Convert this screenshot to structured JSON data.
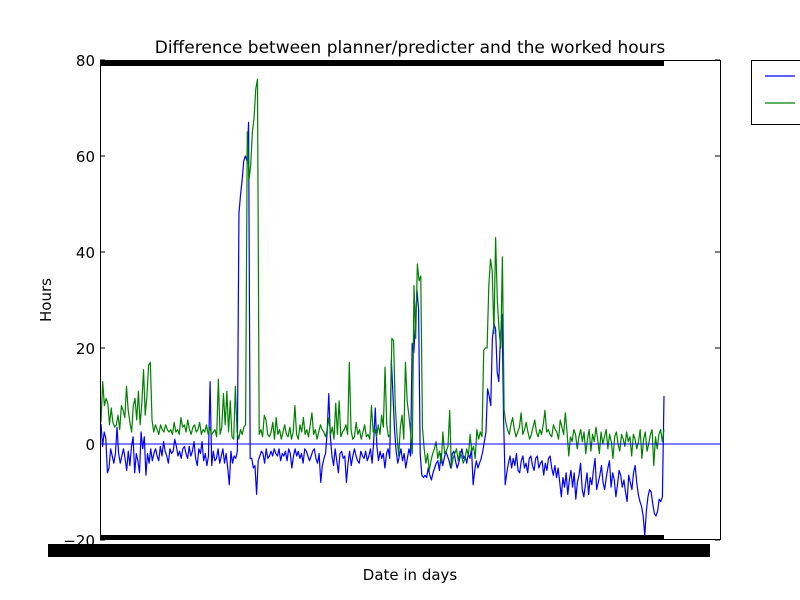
{
  "chart_data": {
    "type": "line",
    "title": "Difference between planner/predicter and the worked hours",
    "xlabel": "Date in days",
    "ylabel": "Hours",
    "ylim": [
      -20,
      80
    ],
    "yticks": [
      "80",
      "60",
      "40",
      "20",
      "0",
      "−20"
    ],
    "legend_position": "outside-top-right",
    "grid": false,
    "reference_line": 0,
    "series": [
      {
        "color": "#0000ff",
        "values": [
          4.2,
          -0.5,
          2.5,
          1.2,
          -6.0,
          -5.0,
          -1.0,
          -2.5,
          -4.0,
          -2.0,
          3.5,
          -2.0,
          -4.0,
          -2.5,
          -1.0,
          -3.0,
          -5.5,
          -1.5,
          -4.5,
          -0.5,
          1.5,
          -6.0,
          -2.0,
          -3.5,
          -6.0,
          2.5,
          -1.0,
          1.5,
          -6.5,
          -2.0,
          -4.0,
          -1.0,
          -3.5,
          -2.0,
          -1.0,
          -2.5,
          -3.5,
          -0.5,
          -2.5,
          0.5,
          -1.5,
          -2.5,
          -4.0,
          -1.0,
          -2.0,
          -1.5,
          1.0,
          -0.5,
          -2.5,
          -1.5,
          -3.0,
          -1.0,
          -0.5,
          -2.0,
          -3.0,
          -0.5,
          -2.5,
          -1.5,
          0.5,
          -3.0,
          -4.5,
          -1.0,
          -2.0,
          0.5,
          -3.5,
          -2.0,
          -4.5,
          -2.5,
          13.0,
          -4.5,
          -1.5,
          -3.5,
          -3.0,
          -1.0,
          -4.0,
          -2.5,
          -1.0,
          -4.0,
          -2.0,
          -5.0,
          -8.5,
          -1.5,
          -4.0,
          -2.5,
          -3.0,
          -1.5,
          48.0,
          52.0,
          55.0,
          59.0,
          60.0,
          59.0,
          67.0,
          -3.0,
          -3.0,
          -5.0,
          -4.5,
          -10.5,
          -3.5,
          -2.5,
          -1.5,
          -2.0,
          -4.0,
          -1.0,
          -3.0,
          -2.5,
          -1.5,
          -2.5,
          -1.0,
          -2.0,
          -2.5,
          -1.0,
          -3.5,
          -2.0,
          -2.5,
          -1.5,
          -3.5,
          -1.0,
          -2.0,
          -5.0,
          -2.5,
          -1.0,
          -2.5,
          -1.5,
          -3.0,
          -2.0,
          -4.0,
          -1.0,
          -1.5,
          -2.5,
          -3.5,
          -2.5,
          -1.5,
          -1.0,
          -3.0,
          -4.0,
          -2.0,
          -8.0,
          -4.5,
          -3.0,
          -2.0,
          2.5,
          10.5,
          1.5,
          -2.5,
          -4.5,
          -1.0,
          -3.5,
          -6.0,
          -2.0,
          -1.5,
          -3.0,
          -2.5,
          -8.0,
          -4.0,
          -1.5,
          -4.5,
          -2.5,
          -1.0,
          -2.5,
          -3.5,
          -4.0,
          -1.5,
          -2.5,
          -3.0,
          -1.5,
          -3.5,
          -2.5,
          -1.0,
          -4.0,
          0.5,
          7.5,
          -0.5,
          -3.5,
          -1.5,
          -3.0,
          -2.0,
          -5.0,
          -2.0,
          -1.0,
          -3.0,
          17.5,
          10.5,
          3.0,
          -1.5,
          -4.0,
          -2.5,
          -1.0,
          -3.5,
          -2.0,
          -5.0,
          -3.0,
          -1.0,
          -2.5,
          21.0,
          19.0,
          25.0,
          32.0,
          28.0,
          -2.0,
          -6.5,
          -7.0,
          -6.5,
          -7.0,
          -5.0,
          -6.5,
          -7.5,
          -6.0,
          -5.0,
          -4.0,
          -3.5,
          -5.5,
          -2.0,
          -4.5,
          -3.0,
          -1.5,
          -2.5,
          -3.5,
          -5.0,
          -2.0,
          -1.5,
          -3.5,
          -5.0,
          -4.0,
          -2.5,
          -1.0,
          -3.0,
          -2.5,
          -4.0,
          -2.0,
          -3.0,
          -1.0,
          -8.5,
          -5.5,
          -3.5,
          -5.0,
          -4.0,
          -3.0,
          -1.5,
          0.5,
          2.5,
          11.5,
          10.0,
          8.0,
          22.0,
          25.0,
          24.0,
          15.0,
          13.0,
          22.0,
          27.0,
          5.0,
          -8.5,
          -6.0,
          -4.0,
          -2.5,
          -5.0,
          -3.0,
          -4.5,
          -2.0,
          -5.5,
          -6.0,
          -3.5,
          -2.5,
          -5.0,
          -4.0,
          -6.0,
          -3.0,
          -2.5,
          -4.5,
          -5.5,
          -3.0,
          -2.5,
          -5.0,
          -4.0,
          -3.5,
          -6.5,
          -4.0,
          -5.5,
          -3.0,
          -2.5,
          -5.0,
          -6.5,
          -4.5,
          -7.0,
          -5.0,
          -8.0,
          -11.0,
          -7.0,
          -9.0,
          -6.0,
          -10.5,
          -7.5,
          -5.5,
          -9.0,
          -6.0,
          -11.5,
          -8.0,
          -6.5,
          -4.0,
          -9.5,
          -11.0,
          -8.5,
          -6.0,
          -10.5,
          -7.0,
          -8.5,
          -5.5,
          -3.0,
          -9.5,
          -8.0,
          -6.5,
          -4.5,
          -8.0,
          -9.5,
          -7.0,
          -5.0,
          -3.5,
          -9.0,
          -6.0,
          -7.5,
          -11.0,
          -8.5,
          -5.5,
          -6.5,
          -9.0,
          -7.5,
          -10.0,
          -12.0,
          -6.5,
          -8.0,
          -9.5,
          -6.0,
          -4.5,
          -8.0,
          -10.5,
          -12.0,
          -13.0,
          -15.0,
          -19.0,
          -14.0,
          -11.0,
          -9.5,
          -10.0,
          -12.5,
          -14.5,
          -15.0,
          -14.0,
          -11.5,
          -12.0,
          -11.0,
          10.0
        ]
      },
      {
        "color": "#008000",
        "values": [
          4.5,
          13.0,
          8.0,
          9.5,
          8.5,
          4.0,
          7.5,
          4.5,
          3.5,
          4.0,
          6.0,
          3.0,
          8.0,
          7.0,
          5.5,
          12.0,
          7.0,
          4.5,
          2.5,
          8.0,
          9.5,
          5.0,
          11.0,
          4.0,
          8.5,
          15.5,
          6.0,
          10.0,
          16.5,
          17.0,
          5.0,
          2.5,
          4.0,
          3.0,
          2.0,
          4.0,
          3.0,
          2.5,
          4.0,
          3.0,
          2.5,
          3.0,
          2.0,
          4.5,
          2.5,
          3.0,
          2.0,
          5.5,
          3.5,
          4.0,
          2.5,
          5.0,
          3.0,
          2.0,
          3.5,
          4.0,
          2.5,
          3.0,
          4.5,
          2.0,
          3.0,
          2.5,
          4.0,
          2.0,
          3.5,
          2.0,
          2.5,
          3.0,
          1.5,
          13.5,
          2.0,
          3.5,
          10.5,
          4.0,
          11.0,
          2.5,
          9.0,
          1.5,
          1.0,
          12.0,
          2.5,
          1.0,
          3.0,
          2.0,
          3.5,
          4.0,
          65.0,
          55.0,
          58.0,
          65.0,
          68.0,
          74.0,
          76.0,
          2.0,
          3.0,
          1.5,
          6.0,
          5.0,
          2.0,
          1.5,
          2.5,
          4.5,
          1.0,
          5.5,
          2.0,
          3.0,
          1.0,
          2.5,
          4.0,
          2.0,
          1.5,
          3.5,
          1.0,
          2.5,
          8.0,
          2.0,
          1.0,
          4.0,
          2.5,
          5.5,
          2.0,
          3.0,
          1.5,
          4.0,
          6.5,
          2.0,
          3.0,
          1.0,
          2.5,
          4.0,
          3.0,
          2.5,
          1.5,
          3.0,
          5.5,
          2.0,
          3.5,
          1.0,
          8.5,
          2.0,
          9.0,
          1.5,
          2.5,
          3.0,
          4.0,
          2.0,
          17.0,
          3.0,
          1.0,
          1.5,
          4.5,
          2.0,
          3.0,
          1.0,
          2.5,
          4.0,
          1.5,
          2.0,
          1.0,
          8.0,
          2.5,
          3.0,
          1.5,
          4.0,
          2.0,
          6.0,
          3.5,
          16.0,
          4.0,
          1.5,
          2.0,
          22.0,
          21.5,
          8.0,
          2.0,
          -2.5,
          3.5,
          6.0,
          1.0,
          17.0,
          9.0,
          6.0,
          2.5,
          -2.0,
          33.0,
          22.0,
          37.5,
          34.0,
          35.0,
          3.5,
          -1.0,
          -4.0,
          -2.0,
          -5.5,
          -3.5,
          -2.0,
          -1.0,
          0.5,
          -3.0,
          -1.5,
          -4.0,
          2.5,
          -2.0,
          -1.5,
          -0.5,
          7.0,
          -5.0,
          -3.0,
          -2.0,
          -1.0,
          -3.5,
          -1.5,
          -2.5,
          -4.0,
          -3.0,
          -1.0,
          -2.5,
          2.0,
          -1.5,
          -0.5,
          -3.0,
          3.0,
          1.0,
          2.5,
          1.5,
          19.5,
          20.0,
          20.0,
          33.0,
          38.5,
          36.0,
          23.0,
          43.0,
          30.0,
          24.0,
          20.0,
          39.0,
          7.0,
          4.5,
          3.0,
          2.0,
          4.0,
          5.5,
          3.0,
          1.5,
          2.5,
          3.5,
          6.5,
          2.0,
          3.0,
          4.5,
          2.5,
          1.0,
          2.0,
          3.5,
          5.0,
          2.5,
          1.5,
          3.0,
          2.0,
          4.0,
          7.0,
          2.5,
          3.0,
          2.0,
          1.5,
          4.0,
          3.0,
          2.5,
          1.0,
          5.0,
          3.5,
          2.0,
          6.5,
          2.5,
          -2.5,
          1.5,
          0.5,
          3.0,
          2.0,
          -1.0,
          1.5,
          3.0,
          0.5,
          2.5,
          -2.0,
          1.0,
          3.0,
          -1.5,
          2.0,
          0.5,
          3.5,
          1.0,
          -2.0,
          2.5,
          0.0,
          1.5,
          3.0,
          -1.0,
          2.0,
          0.5,
          -3.0,
          1.5,
          2.5,
          0.0,
          -1.5,
          2.0,
          1.0,
          -0.5,
          2.5,
          0.5,
          1.5,
          -2.5,
          2.0,
          1.0,
          -1.0,
          0.5,
          3.0,
          -3.0,
          1.0,
          2.5,
          -1.5,
          0.0,
          2.0,
          3.0,
          -4.5,
          1.5,
          -1.0,
          2.0,
          3.0,
          0.5,
          3.0
        ]
      }
    ]
  }
}
